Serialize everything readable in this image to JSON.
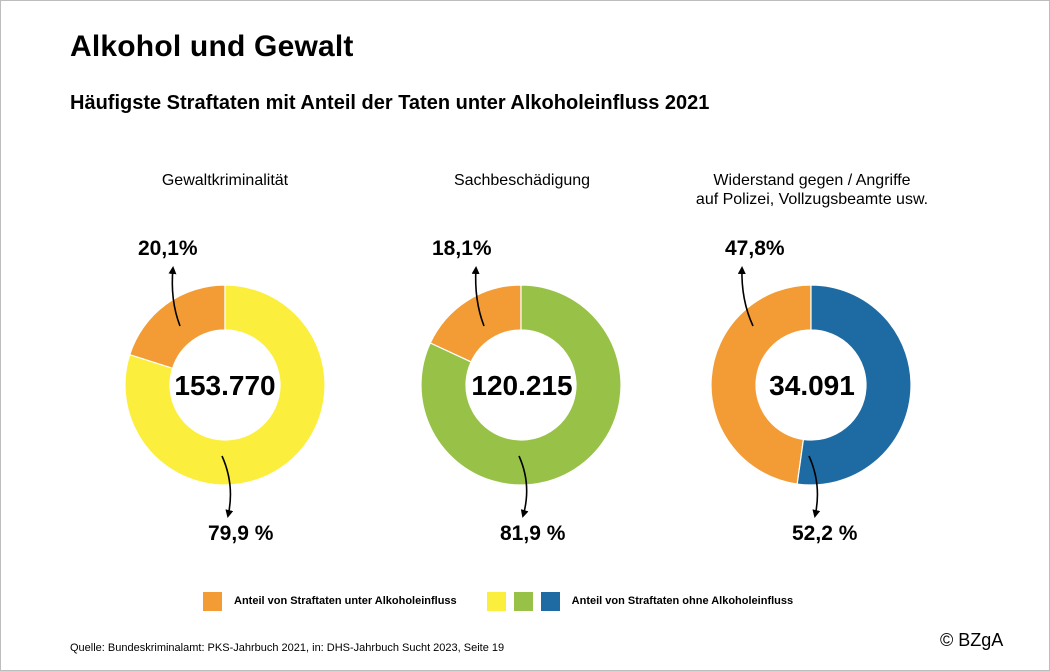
{
  "title": "Alkohol und Gewalt",
  "subtitle": "Häufigste Straftaten mit Anteil der Taten unter Alkoholeinfluss 2021",
  "colors": {
    "alcohol": "#F39C35",
    "chart1_rest": "#FBEE3C",
    "chart2_rest": "#98C148",
    "chart3_rest": "#1E6AA3"
  },
  "chart_data": [
    {
      "type": "pie",
      "title": "Gewaltkriminalität",
      "total_label": "153.770",
      "slices": [
        {
          "label": "20,1%",
          "value": 20.1,
          "color": "#F39C35"
        },
        {
          "label": "79,9 %",
          "value": 79.9,
          "color": "#FBEE3C"
        }
      ]
    },
    {
      "type": "pie",
      "title": "Sachbeschädigung",
      "total_label": "120.215",
      "slices": [
        {
          "label": "18,1%",
          "value": 18.1,
          "color": "#F39C35"
        },
        {
          "label": "81,9 %",
          "value": 81.9,
          "color": "#98C148"
        }
      ]
    },
    {
      "type": "pie",
      "title_line1": "Widerstand gegen / Angriffe",
      "title_line2": "auf Polizei, Vollzugsbeamte usw.",
      "total_label": "34.091",
      "slices": [
        {
          "label": "47,8%",
          "value": 47.8,
          "color": "#F39C35"
        },
        {
          "label": "52,2 %",
          "value": 52.2,
          "color": "#1E6AA3"
        }
      ]
    }
  ],
  "legend": {
    "alcohol_label": "Anteil von Straftaten unter Alkoholeinfluss",
    "no_alcohol_label": "Anteil von Straftaten ohne Alkoholeinfluss"
  },
  "source": "Quelle: Bundeskriminalamt: PKS-Jahrbuch 2021, in: DHS-Jahrbuch Sucht 2023, Seite 19",
  "copyright": "© BZgA"
}
